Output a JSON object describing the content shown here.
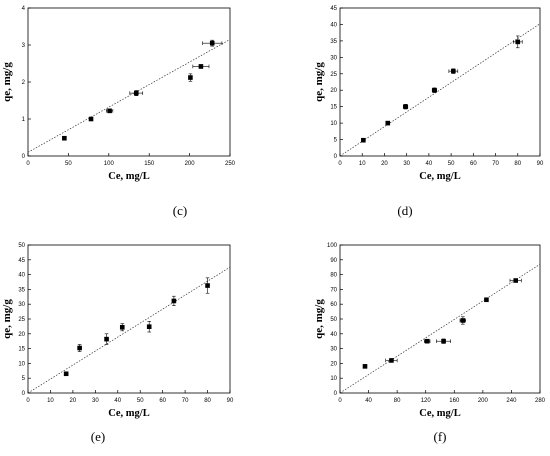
{
  "chart_data": [
    {
      "type": "scatter",
      "panel_label": "(c)",
      "xlabel": "Ce, mg/L",
      "ylabel": "qe, mg/g",
      "xlim": [
        0,
        250
      ],
      "ylim": [
        0,
        4
      ],
      "xticks": [
        0,
        50,
        100,
        150,
        200,
        250
      ],
      "yticks": [
        0,
        1,
        2,
        3,
        4
      ],
      "points": [
        {
          "x": 45,
          "y": 0.48,
          "xerr": 0,
          "yerr": 0
        },
        {
          "x": 78,
          "y": 1.0,
          "xerr": 0,
          "yerr": 0
        },
        {
          "x": 101,
          "y": 1.22,
          "xerr": 4,
          "yerr": 0.05
        },
        {
          "x": 134,
          "y": 1.7,
          "xerr": 8,
          "yerr": 0.07
        },
        {
          "x": 201,
          "y": 2.12,
          "xerr": 0,
          "yerr": 0.1
        },
        {
          "x": 214,
          "y": 2.42,
          "xerr": 10,
          "yerr": 0.05
        },
        {
          "x": 228,
          "y": 3.05,
          "xerr": 12,
          "yerr": 0.08
        }
      ],
      "fit": [
        [
          0,
          0.1
        ],
        [
          250,
          3.15
        ]
      ]
    },
    {
      "type": "scatter",
      "panel_label": "(d)",
      "xlabel": "Ce, mg/L",
      "ylabel": "qe, mg/g",
      "xlim": [
        0,
        90
      ],
      "ylim": [
        0,
        45
      ],
      "xticks": [
        0,
        10,
        20,
        30,
        40,
        50,
        60,
        70,
        80,
        90
      ],
      "yticks": [
        0,
        5,
        10,
        15,
        20,
        25,
        30,
        35,
        40,
        45
      ],
      "points": [
        {
          "x": 10.5,
          "y": 4.8,
          "xerr": 0,
          "yerr": 0
        },
        {
          "x": 21.5,
          "y": 10.0,
          "xerr": 0.6,
          "yerr": 0.3
        },
        {
          "x": 29.5,
          "y": 15.0,
          "xerr": 1.0,
          "yerr": 0.7
        },
        {
          "x": 42.5,
          "y": 20.0,
          "xerr": 1.0,
          "yerr": 0.7
        },
        {
          "x": 51,
          "y": 25.8,
          "xerr": 2.0,
          "yerr": 0.7
        },
        {
          "x": 80,
          "y": 34.7,
          "xerr": 2.0,
          "yerr": 1.8
        }
      ],
      "fit": [
        [
          0,
          0
        ],
        [
          90,
          40.2
        ]
      ]
    },
    {
      "type": "scatter",
      "panel_label": "(e)",
      "xlabel": "Ce, mg/L",
      "ylabel": "qe, mg/g",
      "xlim": [
        0,
        90
      ],
      "ylim": [
        0,
        50
      ],
      "xticks": [
        0,
        10,
        20,
        30,
        40,
        50,
        60,
        70,
        80,
        90
      ],
      "yticks": [
        0,
        5,
        10,
        15,
        20,
        25,
        30,
        35,
        40,
        45,
        50
      ],
      "points": [
        {
          "x": 17,
          "y": 6.5,
          "xerr": 0,
          "yerr": 0.6
        },
        {
          "x": 23,
          "y": 15.2,
          "xerr": 0,
          "yerr": 1.2
        },
        {
          "x": 35,
          "y": 18.2,
          "xerr": 0,
          "yerr": 1.8
        },
        {
          "x": 42,
          "y": 22.2,
          "xerr": 0,
          "yerr": 1.2
        },
        {
          "x": 54,
          "y": 22.4,
          "xerr": 0,
          "yerr": 1.8
        },
        {
          "x": 65,
          "y": 31.1,
          "xerr": 0,
          "yerr": 1.6
        },
        {
          "x": 80,
          "y": 36.3,
          "xerr": 0,
          "yerr": 2.6
        }
      ],
      "fit": [
        [
          0,
          0
        ],
        [
          90,
          42.5
        ]
      ]
    },
    {
      "type": "scatter",
      "panel_label": "(f)",
      "xlabel": "Ce, mg/L",
      "ylabel": "qe, mg/g",
      "xlim": [
        0,
        280
      ],
      "ylim": [
        0,
        100
      ],
      "xticks": [
        0,
        40,
        80,
        120,
        160,
        200,
        240,
        280
      ],
      "yticks": [
        0,
        10,
        20,
        30,
        40,
        50,
        60,
        70,
        80,
        90,
        100
      ],
      "points": [
        {
          "x": 35,
          "y": 18,
          "xerr": 0,
          "yerr": 0
        },
        {
          "x": 72,
          "y": 22,
          "xerr": 8,
          "yerr": 1
        },
        {
          "x": 122,
          "y": 35,
          "xerr": 4,
          "yerr": 1
        },
        {
          "x": 145,
          "y": 35,
          "xerr": 10,
          "yerr": 1.5
        },
        {
          "x": 172,
          "y": 49,
          "xerr": 4,
          "yerr": 2.5
        },
        {
          "x": 205,
          "y": 63,
          "xerr": 0,
          "yerr": 1
        },
        {
          "x": 246,
          "y": 76,
          "xerr": 8,
          "yerr": 1
        }
      ],
      "fit": [
        [
          0,
          0
        ],
        [
          280,
          87
        ]
      ]
    }
  ]
}
